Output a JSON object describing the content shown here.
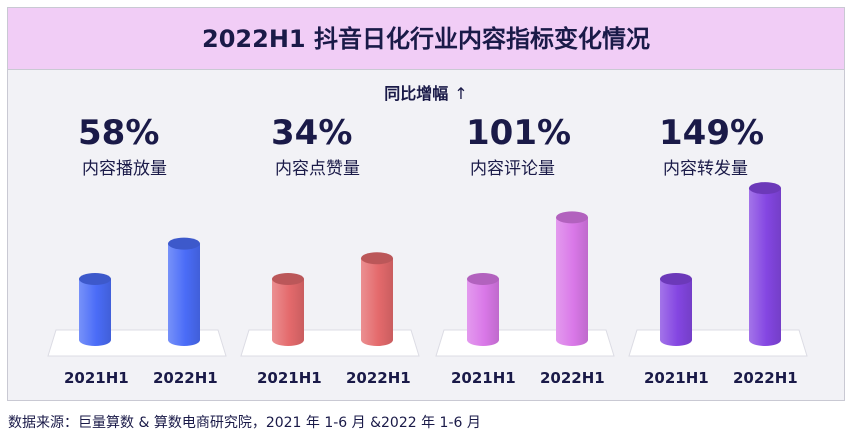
{
  "title": "2022H1 抖音日化行业内容指标变化情况",
  "subtitle": "同比增幅",
  "subtitle_arrow": "↑",
  "source": "数据来源：巨量算数 & 算数电商研究院，2021 年 1-6 月 &2022 年 1-6 月",
  "colors": {
    "banner": "#f1cdf6",
    "text": "#1a1a48",
    "blue": "#4a6cf7",
    "red": "#e46a6c",
    "pink": "#d978e8",
    "purple": "#8446e2"
  },
  "chart_data": {
    "type": "bar",
    "title": "2022H1 抖音日化行业内容指标变化情况",
    "categories": [
      "2021H1",
      "2022H1"
    ],
    "series": [
      {
        "name": "内容播放量",
        "growth_label": "58%",
        "values": [
          1.0,
          1.58
        ],
        "color": "#4a6cf7"
      },
      {
        "name": "内容点赞量",
        "growth_label": "34%",
        "values": [
          1.0,
          1.34
        ],
        "color": "#e46a6c"
      },
      {
        "name": "内容评论量",
        "growth_label": "101%",
        "values": [
          1.0,
          2.01
        ],
        "color": "#d978e8"
      },
      {
        "name": "内容转发量",
        "growth_label": "149%",
        "values": [
          1.0,
          2.49
        ],
        "color": "#8446e2"
      }
    ],
    "xlabel": "",
    "ylabel": "",
    "grid": false
  }
}
